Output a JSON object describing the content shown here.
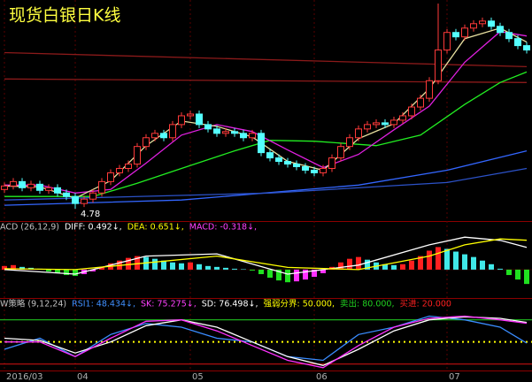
{
  "chart_data": [
    {
      "type": "candlestick",
      "title": "现货白银日K线",
      "categories": [
        "2016/03",
        null,
        null,
        null,
        null,
        null,
        null,
        null,
        "04",
        null,
        null,
        null,
        null,
        null,
        null,
        null,
        null,
        null,
        null,
        null,
        null,
        "05",
        null,
        null,
        null,
        null,
        null,
        null,
        null,
        null,
        null,
        null,
        null,
        null,
        null,
        "06",
        null,
        null,
        null,
        null,
        null,
        null,
        null,
        null,
        null,
        null,
        null,
        null,
        null,
        null,
        "07",
        null,
        null,
        null,
        null,
        null,
        null,
        null,
        null,
        null
      ],
      "open": [
        5.0,
        5.04,
        5.09,
        5.02,
        5.06,
        4.99,
        5.02,
        4.96,
        4.92,
        4.84,
        4.89,
        4.96,
        5.09,
        5.19,
        5.24,
        5.29,
        5.49,
        5.59,
        5.64,
        5.59,
        5.74,
        5.84,
        5.86,
        5.74,
        5.69,
        5.64,
        5.66,
        5.64,
        5.59,
        5.64,
        5.42,
        5.36,
        5.32,
        5.29,
        5.26,
        5.22,
        5.19,
        5.24,
        5.36,
        5.49,
        5.59,
        5.69,
        5.74,
        5.76,
        5.74,
        5.79,
        5.84,
        5.94,
        6.04,
        6.24,
        6.59,
        6.79,
        6.74,
        6.84,
        6.89,
        6.92,
        6.86,
        6.79,
        6.72,
        6.64
      ],
      "high": [
        5.08,
        5.13,
        5.13,
        5.1,
        5.1,
        5.06,
        5.06,
        5.0,
        4.96,
        4.93,
        5.0,
        5.13,
        5.23,
        5.28,
        5.33,
        5.53,
        5.63,
        5.68,
        5.68,
        5.78,
        5.88,
        5.9,
        5.9,
        5.78,
        5.73,
        5.7,
        5.7,
        5.68,
        5.68,
        5.68,
        5.46,
        5.4,
        5.36,
        5.33,
        5.3,
        5.26,
        5.28,
        5.4,
        5.53,
        5.63,
        5.73,
        5.78,
        5.8,
        5.8,
        5.83,
        5.88,
        5.98,
        6.08,
        6.28,
        7.12,
        6.83,
        6.83,
        6.88,
        6.93,
        6.96,
        6.96,
        6.9,
        6.83,
        6.76,
        6.68
      ],
      "low": [
        4.96,
        5.0,
        4.98,
        4.98,
        4.95,
        4.95,
        4.92,
        4.88,
        4.78,
        4.8,
        4.85,
        4.92,
        5.05,
        5.15,
        5.2,
        5.25,
        5.45,
        5.55,
        5.55,
        5.55,
        5.7,
        5.8,
        5.7,
        5.65,
        5.6,
        5.6,
        5.6,
        5.55,
        5.55,
        5.38,
        5.32,
        5.28,
        5.25,
        5.22,
        5.18,
        5.15,
        5.15,
        5.2,
        5.32,
        5.45,
        5.55,
        5.65,
        5.7,
        5.7,
        5.7,
        5.75,
        5.8,
        5.9,
        6.0,
        6.2,
        6.55,
        6.7,
        6.7,
        6.8,
        6.85,
        6.82,
        6.75,
        6.68,
        6.6,
        6.55
      ],
      "close": [
        5.04,
        5.09,
        5.02,
        5.06,
        4.99,
        5.02,
        4.96,
        4.92,
        4.84,
        4.89,
        4.96,
        5.09,
        5.19,
        5.24,
        5.29,
        5.49,
        5.59,
        5.64,
        5.59,
        5.74,
        5.84,
        5.86,
        5.74,
        5.69,
        5.64,
        5.66,
        5.64,
        5.59,
        5.64,
        5.42,
        5.36,
        5.32,
        5.29,
        5.26,
        5.22,
        5.19,
        5.24,
        5.36,
        5.49,
        5.59,
        5.69,
        5.74,
        5.76,
        5.74,
        5.79,
        5.84,
        5.94,
        6.04,
        6.24,
        6.59,
        6.79,
        6.74,
        6.84,
        6.89,
        6.92,
        6.86,
        6.79,
        6.72,
        6.64,
        6.59
      ],
      "low_label": "4.78",
      "up_color": "#ff3a3a",
      "down_color": "#54ffff",
      "ylim": [
        4.64,
        7.14
      ],
      "series": [
        {
          "color": "#8b1a1a",
          "x": [
            0,
            59
          ],
          "values": [
            6.56,
            6.4
          ]
        },
        {
          "color": "#8b1a1a",
          "x": [
            0,
            59
          ],
          "values": [
            6.26,
            6.22
          ]
        },
        {
          "color": "#3366ff",
          "x": [
            0,
            20,
            40,
            50,
            59
          ],
          "values": [
            4.82,
            4.88,
            5.05,
            5.22,
            5.44
          ]
        },
        {
          "color": "#2c52c8",
          "x": [
            0,
            30,
            50,
            59
          ],
          "values": [
            4.88,
            4.96,
            5.08,
            5.24
          ]
        },
        {
          "color": "#22ee22",
          "x": [
            0,
            10,
            15,
            20,
            26,
            30,
            35,
            42,
            47,
            52,
            56,
            59
          ],
          "values": [
            4.92,
            4.92,
            5.07,
            5.24,
            5.44,
            5.56,
            5.55,
            5.5,
            5.62,
            5.97,
            6.22,
            6.34
          ]
        },
        {
          "color": "#e020e0",
          "x": [
            0,
            4,
            8,
            12,
            16,
            20,
            24,
            28,
            32,
            36,
            40,
            44,
            48,
            52,
            56,
            59
          ],
          "values": [
            5.05,
            5.05,
            4.96,
            5.0,
            5.3,
            5.62,
            5.74,
            5.66,
            5.45,
            5.25,
            5.4,
            5.68,
            5.95,
            6.45,
            6.8,
            6.75
          ]
        },
        {
          "color": "#e8e0a0",
          "x": [
            0,
            4,
            8,
            12,
            16,
            20,
            24,
            28,
            32,
            36,
            40,
            44,
            48,
            52,
            56,
            59
          ],
          "values": [
            5.04,
            5.03,
            4.9,
            5.1,
            5.5,
            5.78,
            5.72,
            5.6,
            5.32,
            5.22,
            5.58,
            5.75,
            6.15,
            6.72,
            6.84,
            6.68
          ]
        }
      ]
    },
    {
      "type": "macd",
      "header": [
        {
          "text": "ACD (26,12,9)",
          "color": "#c0c0c0"
        },
        {
          "text": "DIFF: 0.492↓,",
          "color": "#ffffff"
        },
        {
          "text": "DEA: 0.651↓,",
          "color": "#ffff00"
        },
        {
          "text": "MACD: -0.318↓,",
          "color": "#ff40ff"
        }
      ],
      "values": [
        0.08,
        0.1,
        0.06,
        0.04,
        0.02,
        -0.04,
        -0.08,
        -0.12,
        -0.14,
        -0.1,
        -0.04,
        0.06,
        0.14,
        0.2,
        0.26,
        0.3,
        0.28,
        0.24,
        0.2,
        0.16,
        0.14,
        0.16,
        0.12,
        0.08,
        0.06,
        0.04,
        0.02,
        0.01,
        -0.02,
        -0.1,
        -0.18,
        -0.24,
        -0.28,
        -0.26,
        -0.22,
        -0.16,
        -0.08,
        0.06,
        0.16,
        0.24,
        0.28,
        0.22,
        0.16,
        0.12,
        0.1,
        0.12,
        0.2,
        0.3,
        0.42,
        0.5,
        0.46,
        0.4,
        0.34,
        0.28,
        0.2,
        0.12,
        0.02,
        -0.12,
        -0.22,
        -0.318
      ],
      "bar_colors": {
        "rise": "#ff2020",
        "fall": "#40e8e8",
        "neg": "#20e020",
        "neg_rise": "#ff30ff"
      },
      "ylim": [
        -0.59,
        0.92
      ],
      "series": [
        {
          "color": "#ffffff",
          "x": [
            0,
            8,
            16,
            24,
            32,
            40,
            48,
            52,
            56,
            59
          ],
          "values": [
            0.0,
            -0.1,
            0.3,
            0.35,
            -0.1,
            0.1,
            0.55,
            0.72,
            0.65,
            0.492
          ]
        },
        {
          "color": "#ffff00",
          "x": [
            0,
            8,
            16,
            24,
            32,
            40,
            48,
            52,
            56,
            59
          ],
          "values": [
            0.02,
            0.0,
            0.15,
            0.3,
            0.05,
            0.0,
            0.3,
            0.55,
            0.68,
            0.651
          ]
        }
      ]
    },
    {
      "type": "indicator",
      "header": [
        {
          "text": "W策略 (9,12,24)",
          "color": "#c0c0c0"
        },
        {
          "text": "RSI1: 48.434↓,",
          "color": "#4090ff"
        },
        {
          "text": "SK: 75.275↓,",
          "color": "#ff40ff"
        },
        {
          "text": "SD: 76.498↓,",
          "color": "#ffffff"
        },
        {
          "text": "强弱分界: 50.000,",
          "color": "#ffff00"
        },
        {
          "text": "卖出: 80.000,",
          "color": "#20d020"
        },
        {
          "text": "买进: 20.000",
          "color": "#ff2020"
        }
      ],
      "ylim": [
        10,
        100
      ],
      "hlines": [
        {
          "value": 80,
          "color": "#20c020",
          "dash": false
        },
        {
          "value": 50,
          "color": "#ffff00",
          "dash": true
        },
        {
          "value": 20,
          "color": "#c01010",
          "dash": false
        }
      ],
      "series": [
        {
          "color": "#3a8cff",
          "x": [
            0,
            4,
            8,
            12,
            16,
            20,
            24,
            28,
            32,
            36,
            40,
            44,
            48,
            52,
            56,
            59
          ],
          "values": [
            40,
            55,
            30,
            60,
            75,
            70,
            55,
            50,
            30,
            25,
            60,
            70,
            85,
            80,
            70,
            48.434
          ]
        },
        {
          "color": "#ffffff",
          "x": [
            0,
            4,
            8,
            12,
            16,
            20,
            24,
            28,
            32,
            36,
            40,
            44,
            48,
            52,
            56,
            59
          ],
          "values": [
            55,
            52,
            35,
            50,
            72,
            80,
            70,
            50,
            30,
            18,
            40,
            65,
            80,
            84,
            82,
            76.498
          ]
        },
        {
          "color": "#ff30ff",
          "x": [
            0,
            4,
            8,
            12,
            16,
            20,
            24,
            28,
            32,
            36,
            40,
            44,
            48,
            52,
            56,
            59
          ],
          "values": [
            50,
            50,
            30,
            55,
            78,
            80,
            65,
            45,
            25,
            15,
            45,
            70,
            82,
            85,
            80,
            75.275
          ]
        }
      ]
    }
  ]
}
